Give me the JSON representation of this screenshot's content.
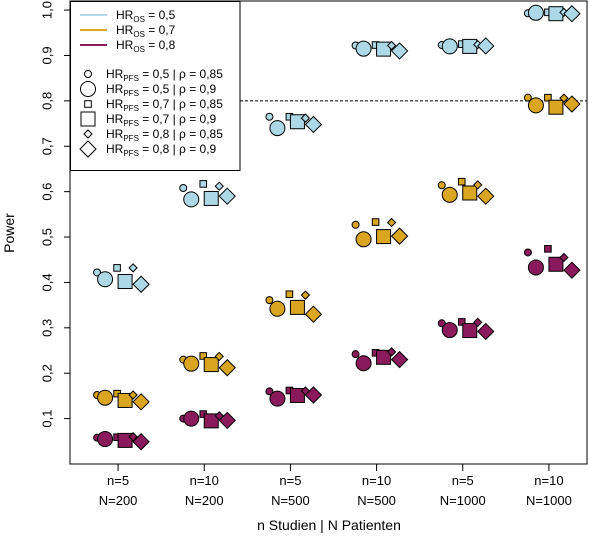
{
  "chart_data": {
    "type": "scatter",
    "xlabel": "n Studien  |  N Patienten",
    "ylabel": "Power",
    "ylim": [
      0.0,
      1.02
    ],
    "yticks": [
      {
        "value": 0.1,
        "label": "0,1"
      },
      {
        "value": 0.2,
        "label": "0,2"
      },
      {
        "value": 0.3,
        "label": "0,3"
      },
      {
        "value": 0.4,
        "label": "0,4"
      },
      {
        "value": 0.5,
        "label": "0,5"
      },
      {
        "value": 0.6,
        "label": "0,6"
      },
      {
        "value": 0.7,
        "label": "0,7"
      },
      {
        "value": 0.8,
        "label": "0,8"
      },
      {
        "value": 0.9,
        "label": "0,9"
      },
      {
        "value": 1.0,
        "label": "1,0"
      }
    ],
    "reference_line": {
      "value": 0.8,
      "style": "dashed",
      "span": "from legend to right edge"
    },
    "groups": [
      {
        "line1": "n=5",
        "line2": "N=200"
      },
      {
        "line1": "n=10",
        "line2": "N=200"
      },
      {
        "line1": "n=5",
        "line2": "N=500"
      },
      {
        "line1": "n=10",
        "line2": "N=500"
      },
      {
        "line1": "n=5",
        "line2": "N=1000"
      },
      {
        "line1": "n=10",
        "line2": "N=1000"
      }
    ],
    "point_order": [
      {
        "shape": "circle",
        "size": "small"
      },
      {
        "shape": "circle",
        "size": "large"
      },
      {
        "shape": "square",
        "size": "small"
      },
      {
        "shape": "square",
        "size": "large"
      },
      {
        "shape": "diamond",
        "size": "small"
      },
      {
        "shape": "diamond",
        "size": "large"
      }
    ],
    "series": [
      {
        "key": "os05",
        "color": "#add8e6",
        "values": [
          [
            0.422,
            0.407,
            0.432,
            0.402,
            0.432,
            0.396
          ],
          [
            0.608,
            0.583,
            0.617,
            0.585,
            0.612,
            0.59
          ],
          [
            0.765,
            0.74,
            0.765,
            0.754,
            0.762,
            0.748
          ],
          [
            0.922,
            0.915,
            0.923,
            0.914,
            0.922,
            0.91
          ],
          [
            0.923,
            0.92,
            0.925,
            0.92,
            0.924,
            0.921
          ],
          [
            0.993,
            0.994,
            0.995,
            0.992,
            0.995,
            0.992
          ]
        ]
      },
      {
        "key": "os07",
        "color": "#daa520",
        "values": [
          [
            0.152,
            0.146,
            0.155,
            0.14,
            0.152,
            0.137
          ],
          [
            0.23,
            0.221,
            0.238,
            0.219,
            0.237,
            0.212
          ],
          [
            0.361,
            0.342,
            0.374,
            0.345,
            0.372,
            0.33
          ],
          [
            0.527,
            0.495,
            0.533,
            0.501,
            0.532,
            0.502
          ],
          [
            0.614,
            0.593,
            0.622,
            0.597,
            0.615,
            0.59
          ],
          [
            0.807,
            0.79,
            0.807,
            0.786,
            0.806,
            0.793
          ]
        ]
      },
      {
        "key": "os08",
        "color": "#8b1a5c",
        "values": [
          [
            0.058,
            0.055,
            0.059,
            0.052,
            0.06,
            0.049
          ],
          [
            0.1,
            0.1,
            0.11,
            0.095,
            0.106,
            0.096
          ],
          [
            0.16,
            0.144,
            0.162,
            0.151,
            0.161,
            0.152
          ],
          [
            0.242,
            0.222,
            0.245,
            0.235,
            0.247,
            0.23
          ],
          [
            0.31,
            0.295,
            0.313,
            0.294,
            0.312,
            0.292
          ],
          [
            0.466,
            0.433,
            0.474,
            0.44,
            0.455,
            0.427
          ]
        ]
      }
    ],
    "legend": {
      "placement": "top-left",
      "os_entries": [
        {
          "series": "os05",
          "main": "HR",
          "sub": "OS",
          "value": " = 0,5"
        },
        {
          "series": "os07",
          "main": "HR",
          "sub": "OS",
          "value": " = 0,7"
        },
        {
          "series": "os08",
          "main": "HR",
          "sub": "OS",
          "value": " = 0,8"
        }
      ],
      "pfs_entries": [
        {
          "shape": "circle",
          "size": "small",
          "main": "HR",
          "sub": "PFS",
          "value": " = 0,5  | ρ = 0,85"
        },
        {
          "shape": "circle",
          "size": "large",
          "main": "HR",
          "sub": "PFS",
          "value": " = 0,5  | ρ = 0,9"
        },
        {
          "shape": "square",
          "size": "small",
          "main": "HR",
          "sub": "PFS",
          "value": " = 0,7  | ρ = 0,85"
        },
        {
          "shape": "square",
          "size": "large",
          "main": "HR",
          "sub": "PFS",
          "value": " = 0,7  | ρ = 0,9"
        },
        {
          "shape": "diamond",
          "size": "small",
          "main": "HR",
          "sub": "PFS",
          "value": " = 0,8  | ρ = 0,85"
        },
        {
          "shape": "diamond",
          "size": "large",
          "main": "HR",
          "sub": "PFS",
          "value": " = 0,8  | ρ = 0,9"
        }
      ]
    }
  }
}
